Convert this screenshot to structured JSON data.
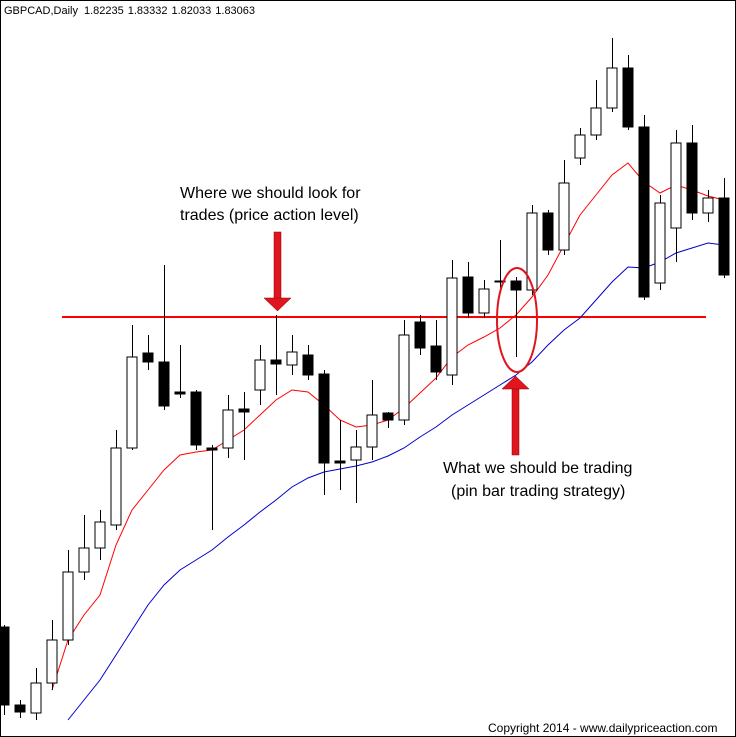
{
  "chart_data": {
    "type": "candlestick",
    "title": "GBPCAD,Daily",
    "readout": [
      1.82235,
      1.83332,
      1.82033,
      1.83063
    ],
    "ylim": [
      1.7526,
      1.9
    ],
    "up_color": "#ffffff",
    "down_color": "#000000",
    "open": [
      1.7746,
      1.759,
      1.7574,
      1.7634,
      1.772,
      1.7856,
      1.7904,
      1.795,
      1.8104,
      1.8294,
      1.8276,
      1.8216,
      1.8216,
      1.8104,
      1.8104,
      1.8182,
      1.822,
      1.828,
      1.827,
      1.829,
      1.8252,
      1.8078,
      1.808,
      1.8106,
      1.8174,
      1.816,
      1.8356,
      1.8308,
      1.825,
      1.8446,
      1.8374,
      1.8438,
      1.8438,
      1.842,
      1.8574,
      1.85,
      1.8684,
      1.873,
      1.8784,
      1.8864,
      1.8746,
      1.8434,
      1.8544,
      1.8714,
      1.8574,
      1.8604
    ],
    "high": [
      1.775,
      1.76,
      1.7664,
      1.776,
      1.79,
      1.797,
      1.798,
      1.814,
      1.835,
      1.833,
      1.847,
      1.831,
      1.822,
      1.811,
      1.821,
      1.8216,
      1.831,
      1.837,
      1.833,
      1.831,
      1.826,
      1.816,
      1.814,
      1.824,
      1.8176,
      1.836,
      1.837,
      1.836,
      1.848,
      1.8476,
      1.844,
      1.852,
      1.8446,
      1.859,
      1.858,
      1.868,
      1.8744,
      1.884,
      1.8924,
      1.889,
      1.877,
      1.861,
      1.874,
      1.875,
      1.862,
      1.8644
    ],
    "low": [
      1.757,
      1.7564,
      1.756,
      1.762,
      1.771,
      1.784,
      1.788,
      1.794,
      1.81,
      1.826,
      1.818,
      1.8204,
      1.81,
      1.794,
      1.8084,
      1.808,
      1.819,
      1.821,
      1.825,
      1.824,
      1.801,
      1.802,
      1.7994,
      1.808,
      1.8144,
      1.815,
      1.829,
      1.824,
      1.823,
      1.8364,
      1.8364,
      1.842,
      1.8286,
      1.841,
      1.849,
      1.849,
      1.867,
      1.872,
      1.8776,
      1.874,
      1.84,
      1.842,
      1.8476,
      1.856,
      1.8556,
      1.8444
    ],
    "close": [
      1.759,
      1.7576,
      1.7634,
      1.772,
      1.7856,
      1.7904,
      1.7956,
      1.8104,
      1.8286,
      1.8276,
      1.8188,
      1.8212,
      1.811,
      1.81,
      1.818,
      1.8176,
      1.828,
      1.8272,
      1.8296,
      1.825,
      1.8074,
      1.8074,
      1.8106,
      1.817,
      1.816,
      1.833,
      1.8304,
      1.8256,
      1.8444,
      1.8374,
      1.8422,
      1.8436,
      1.842,
      1.8574,
      1.85,
      1.8634,
      1.873,
      1.8784,
      1.8864,
      1.8746,
      1.8406,
      1.8594,
      1.8714,
      1.8574,
      1.8604,
      1.845
    ],
    "overlays": [
      {
        "color": "#ff0000",
        "values": [
          null,
          null,
          null,
          1.762,
          1.772,
          1.777,
          1.781,
          1.791,
          1.798,
          1.802,
          1.806,
          1.809,
          1.8096,
          1.81,
          1.812,
          1.814,
          1.817,
          1.82,
          1.822,
          1.8216,
          1.819,
          1.816,
          1.8146,
          1.815,
          1.816,
          1.8184,
          1.8214,
          1.8244,
          1.8286,
          1.831,
          1.8326,
          1.8344,
          1.837,
          1.8406,
          1.845,
          1.851,
          1.857,
          1.861,
          1.865,
          1.8674,
          1.8636,
          1.8614,
          1.863,
          1.862,
          1.8608,
          1.86
        ]
      },
      {
        "color": "#0000cc",
        "values": [
          null,
          null,
          null,
          null,
          1.756,
          1.76,
          1.764,
          1.769,
          1.774,
          1.779,
          1.783,
          1.786,
          1.788,
          1.79,
          1.7926,
          1.795,
          1.7976,
          1.8,
          1.8026,
          1.8044,
          1.8056,
          1.8062,
          1.8068,
          1.8076,
          1.8088,
          1.8104,
          1.8126,
          1.8146,
          1.817,
          1.819,
          1.821,
          1.823,
          1.825,
          1.8276,
          1.831,
          1.834,
          1.8364,
          1.84,
          1.8436,
          1.8466,
          1.8464,
          1.8476,
          1.8494,
          1.8504,
          1.8514,
          1.851
        ]
      }
    ],
    "level": 1.8366,
    "level_color": "#ff0000",
    "annotations": [
      {
        "lines": [
          "Where we should look for",
          "trades (price action level)"
        ]
      },
      {
        "lines": [
          "What we should be trading",
          "(pin bar trading strategy)"
        ]
      }
    ],
    "copyright": "Copyright 2014 - www.dailypriceaction.com"
  }
}
